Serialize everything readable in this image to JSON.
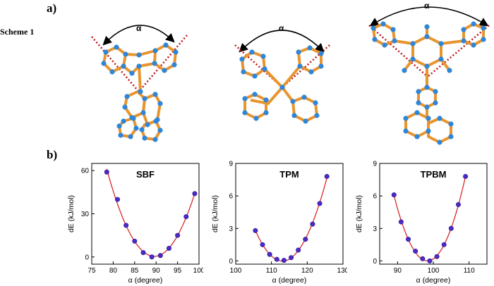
{
  "figure": {
    "panel_a_label": "a)",
    "panel_b_label": "b)",
    "scheme_label": "Scheme 1",
    "angle_symbol": "α",
    "colors": {
      "bond": "#e8952e",
      "atom": "#2f86d8",
      "guide": "#c0141a",
      "curve": "#d62a2a",
      "point": "#4b2ac8"
    }
  },
  "chart_data": [
    {
      "type": "scatter",
      "title": "SBF",
      "xlabel": "α (degree)",
      "ylabel": "dE (kJ/mol)",
      "xlim": [
        75,
        100
      ],
      "ylim": [
        -5,
        65
      ],
      "xticks": [
        75,
        80,
        85,
        90,
        95,
        100
      ],
      "yticks": [
        0,
        30,
        60
      ],
      "x": [
        78.5,
        81,
        83,
        85,
        87,
        89,
        91,
        93,
        95,
        97,
        99
      ],
      "y": [
        59,
        40,
        22,
        11,
        3,
        0,
        1,
        6,
        15,
        28,
        44
      ],
      "fit_line": true
    },
    {
      "type": "scatter",
      "title": "TPM",
      "xlabel": "α (degree)",
      "ylabel": "dE (kJ/mol)",
      "xlim": [
        100,
        130
      ],
      "ylim": [
        -0.3,
        9
      ],
      "xticks": [
        100,
        110,
        120,
        130
      ],
      "yticks": [
        0,
        3,
        6,
        9
      ],
      "x": [
        105.5,
        107.5,
        109.5,
        111.5,
        113.5,
        115.5,
        117.5,
        119.5,
        121.5,
        123.5,
        125.5
      ],
      "y": [
        2.8,
        1.5,
        0.6,
        0.15,
        0.05,
        0.3,
        1.0,
        2.0,
        3.4,
        5.3,
        7.8
      ],
      "fit_line": true
    },
    {
      "type": "scatter",
      "title": "TPBM",
      "xlabel": "α (degree)",
      "ylabel": "dE (kJ/mol)",
      "xlim": [
        85,
        115
      ],
      "ylim": [
        -0.3,
        9
      ],
      "xticks": [
        90,
        100,
        110
      ],
      "yticks": [
        0,
        3,
        6,
        9
      ],
      "x": [
        89,
        91,
        93,
        95,
        97,
        99,
        101,
        103,
        105,
        107,
        109
      ],
      "y": [
        6.1,
        3.6,
        2.0,
        0.9,
        0.2,
        0.0,
        0.4,
        1.5,
        3.0,
        5.2,
        7.8
      ],
      "fit_line": true
    }
  ]
}
